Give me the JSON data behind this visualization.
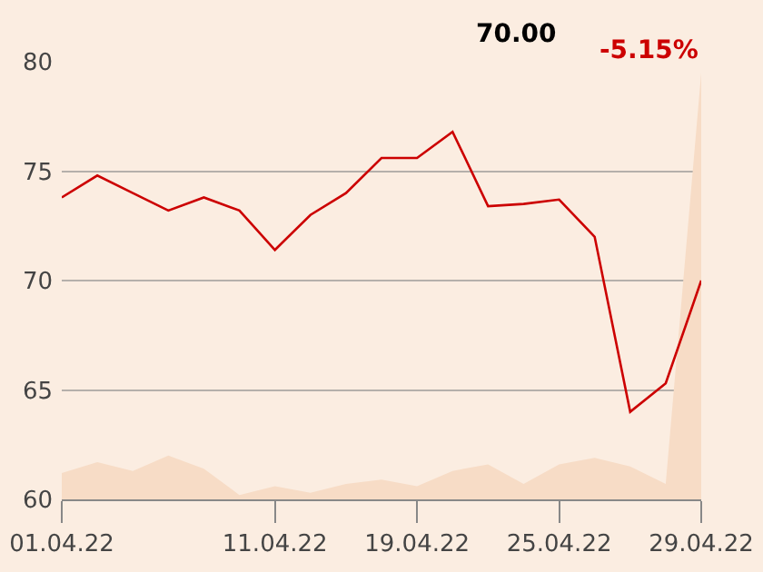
{
  "chart_data": {
    "type": "line",
    "categories": [
      "01.04.22",
      null,
      null,
      null,
      null,
      null,
      "11.04.22",
      null,
      null,
      null,
      "19.04.22",
      null,
      null,
      null,
      "25.04.22",
      null,
      null,
      null,
      "29.04.22"
    ],
    "series": [
      {
        "type": "area",
        "color": "#f7dcc6",
        "values": [
          61.2,
          61.7,
          61.3,
          62.0,
          61.4,
          60.2,
          60.6,
          60.3,
          60.7,
          60.9,
          60.6,
          61.3,
          61.6,
          60.7,
          61.6,
          61.9,
          61.5,
          60.7,
          79.5
        ]
      },
      {
        "color": "#cc0000",
        "values": [
          73.8,
          74.8,
          74.0,
          73.2,
          73.8,
          73.2,
          71.4,
          73.0,
          74.0,
          75.6,
          75.6,
          76.8,
          73.4,
          73.5,
          73.7,
          72.0,
          64.0,
          65.3,
          70.0
        ]
      }
    ],
    "annotations": [
      "70.00",
      "-5.15%"
    ],
    "ylim": [
      60,
      80
    ],
    "yticks": [
      60,
      65,
      70,
      75,
      80
    ],
    "grid": "y",
    "legend": false
  }
}
